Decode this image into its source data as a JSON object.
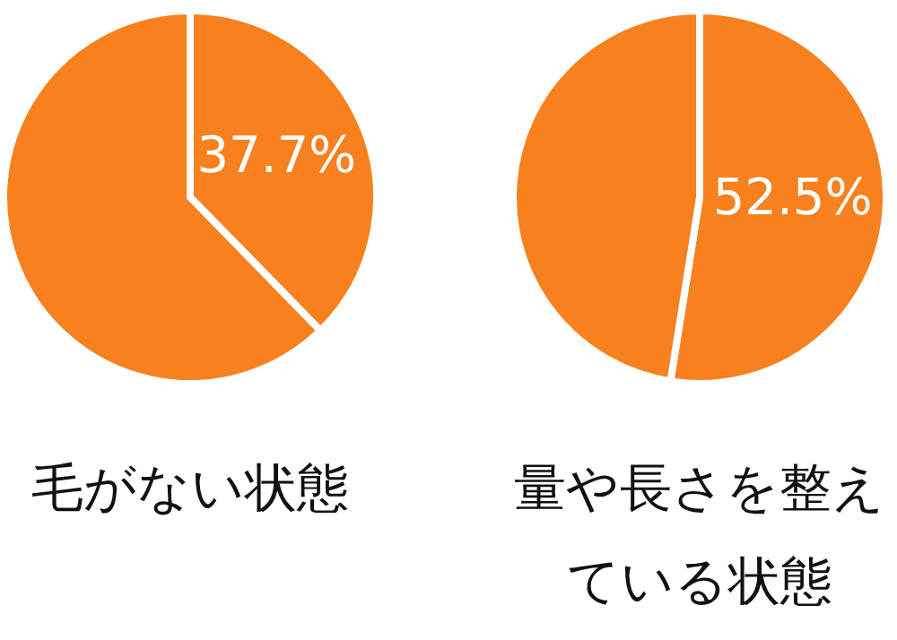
{
  "chart_data": [
    {
      "type": "pie",
      "title": "毛がない状態",
      "categories": [
        null,
        null
      ],
      "values": [
        37.7,
        62.3
      ],
      "colors": [
        "#f7811e",
        "#f7811e"
      ],
      "value_labels": [
        "37.7%",
        null
      ]
    },
    {
      "type": "pie",
      "title": "量や長さを整えている状態",
      "categories": [
        null,
        null
      ],
      "values": [
        52.5,
        47.5
      ],
      "colors": [
        "#f7811e",
        "#f7811e"
      ],
      "value_labels": [
        "52.5%",
        null
      ]
    }
  ]
}
